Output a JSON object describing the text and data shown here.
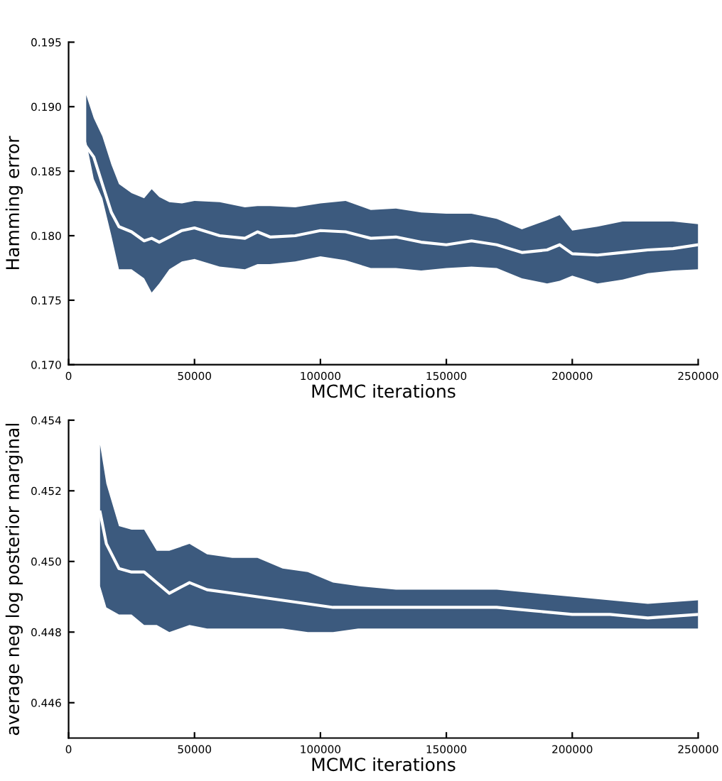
{
  "chart_data": [
    {
      "type": "line",
      "xlabel": "MCMC iterations",
      "ylabel": "Hamming error",
      "xlim": [
        0,
        250000
      ],
      "xticks": [
        0,
        50000,
        100000,
        150000,
        200000,
        250000
      ],
      "ylim": [
        0.17,
        0.195
      ],
      "yticks": [
        {
          "value": 0.17,
          "label": "0.170"
        },
        0.175,
        {
          "value": 0.18,
          "label": "0.180"
        },
        0.185,
        {
          "value": 0.19,
          "label": "0.190"
        },
        0.195
      ],
      "grid": false,
      "legend": false,
      "x": [
        7000,
        10000,
        13400,
        17000,
        20000,
        25000,
        30000,
        33000,
        36000,
        40000,
        45000,
        50000,
        60000,
        70000,
        75000,
        80000,
        90000,
        100000,
        110000,
        120000,
        130000,
        140000,
        150000,
        160000,
        170000,
        180000,
        190000,
        195000,
        200000,
        210000,
        220000,
        230000,
        240000,
        250000
      ],
      "series": [
        {
          "color": "#ffffff",
          "values": [
            0.1869,
            0.1861,
            0.184,
            0.1818,
            0.1807,
            0.1803,
            0.1796,
            0.1798,
            0.1795,
            0.1799,
            0.1804,
            0.1806,
            0.18,
            0.1798,
            0.1803,
            0.1799,
            0.18,
            0.1804,
            0.1803,
            0.1798,
            0.1799,
            0.1795,
            0.1793,
            0.1796,
            0.1793,
            0.1787,
            0.1789,
            0.1793,
            0.1786,
            0.1785,
            0.1787,
            0.1789,
            0.179,
            0.1793
          ],
          "upper": [
            0.1909,
            0.1891,
            0.1877,
            0.1855,
            0.184,
            0.1833,
            0.1829,
            0.1836,
            0.183,
            0.1826,
            0.1825,
            0.1827,
            0.1826,
            0.1822,
            0.1823,
            0.1823,
            0.1822,
            0.1825,
            0.1827,
            0.182,
            0.1821,
            0.1818,
            0.1817,
            0.1817,
            0.1813,
            0.1805,
            0.1812,
            0.1816,
            0.1804,
            0.1807,
            0.1811,
            0.1811,
            0.1811,
            0.1809
          ],
          "lower": [
            0.1873,
            0.1844,
            0.1829,
            0.18,
            0.1774,
            0.1774,
            0.1767,
            0.1756,
            0.1763,
            0.1774,
            0.178,
            0.1782,
            0.1776,
            0.1774,
            0.1778,
            0.1778,
            0.178,
            0.1784,
            0.1781,
            0.1775,
            0.1775,
            0.1773,
            0.1775,
            0.1776,
            0.1775,
            0.1767,
            0.1763,
            0.1765,
            0.1769,
            0.1763,
            0.1766,
            0.1771,
            0.1773,
            0.1774
          ]
        }
      ]
    },
    {
      "type": "line",
      "xlabel": "MCMC iterations",
      "ylabel": "average neg log posterior marginal",
      "xlim": [
        0,
        250000
      ],
      "xticks": [
        0,
        50000,
        100000,
        150000,
        200000,
        250000
      ],
      "ylim": [
        0.445,
        0.454
      ],
      "yticks": [
        0.446,
        0.448,
        {
          "value": 0.45,
          "label": "0.450"
        },
        0.452,
        0.454
      ],
      "grid": false,
      "legend": false,
      "x": [
        12500,
        15000,
        20000,
        25000,
        30000,
        35000,
        40000,
        48000,
        55000,
        65000,
        75000,
        85000,
        95000,
        105000,
        115000,
        130000,
        150000,
        170000,
        185000,
        200000,
        215000,
        230000,
        250000
      ],
      "series": [
        {
          "color": "#ffffff",
          "values": [
            0.4514,
            0.4505,
            0.4498,
            0.4497,
            0.4497,
            0.4494,
            0.4491,
            0.4494,
            0.4492,
            0.4491,
            0.449,
            0.4489,
            0.4488,
            0.4487,
            0.4487,
            0.4487,
            0.4487,
            0.4487,
            0.4486,
            0.4485,
            0.4485,
            0.4484,
            0.4485
          ],
          "upper": [
            0.4533,
            0.4522,
            0.451,
            0.4509,
            0.4509,
            0.4503,
            0.4503,
            0.4505,
            0.4502,
            0.4501,
            0.4501,
            0.4498,
            0.4497,
            0.4494,
            0.4493,
            0.4492,
            0.4492,
            0.4492,
            0.4491,
            0.449,
            0.4489,
            0.4488,
            0.4489
          ],
          "lower": [
            0.4493,
            0.4487,
            0.4485,
            0.4485,
            0.4482,
            0.4482,
            0.448,
            0.4482,
            0.4481,
            0.4481,
            0.4481,
            0.4481,
            0.448,
            0.448,
            0.4481,
            0.4481,
            0.4481,
            0.4481,
            0.4481,
            0.4481,
            0.4481,
            0.4481,
            0.4481
          ]
        }
      ]
    }
  ]
}
